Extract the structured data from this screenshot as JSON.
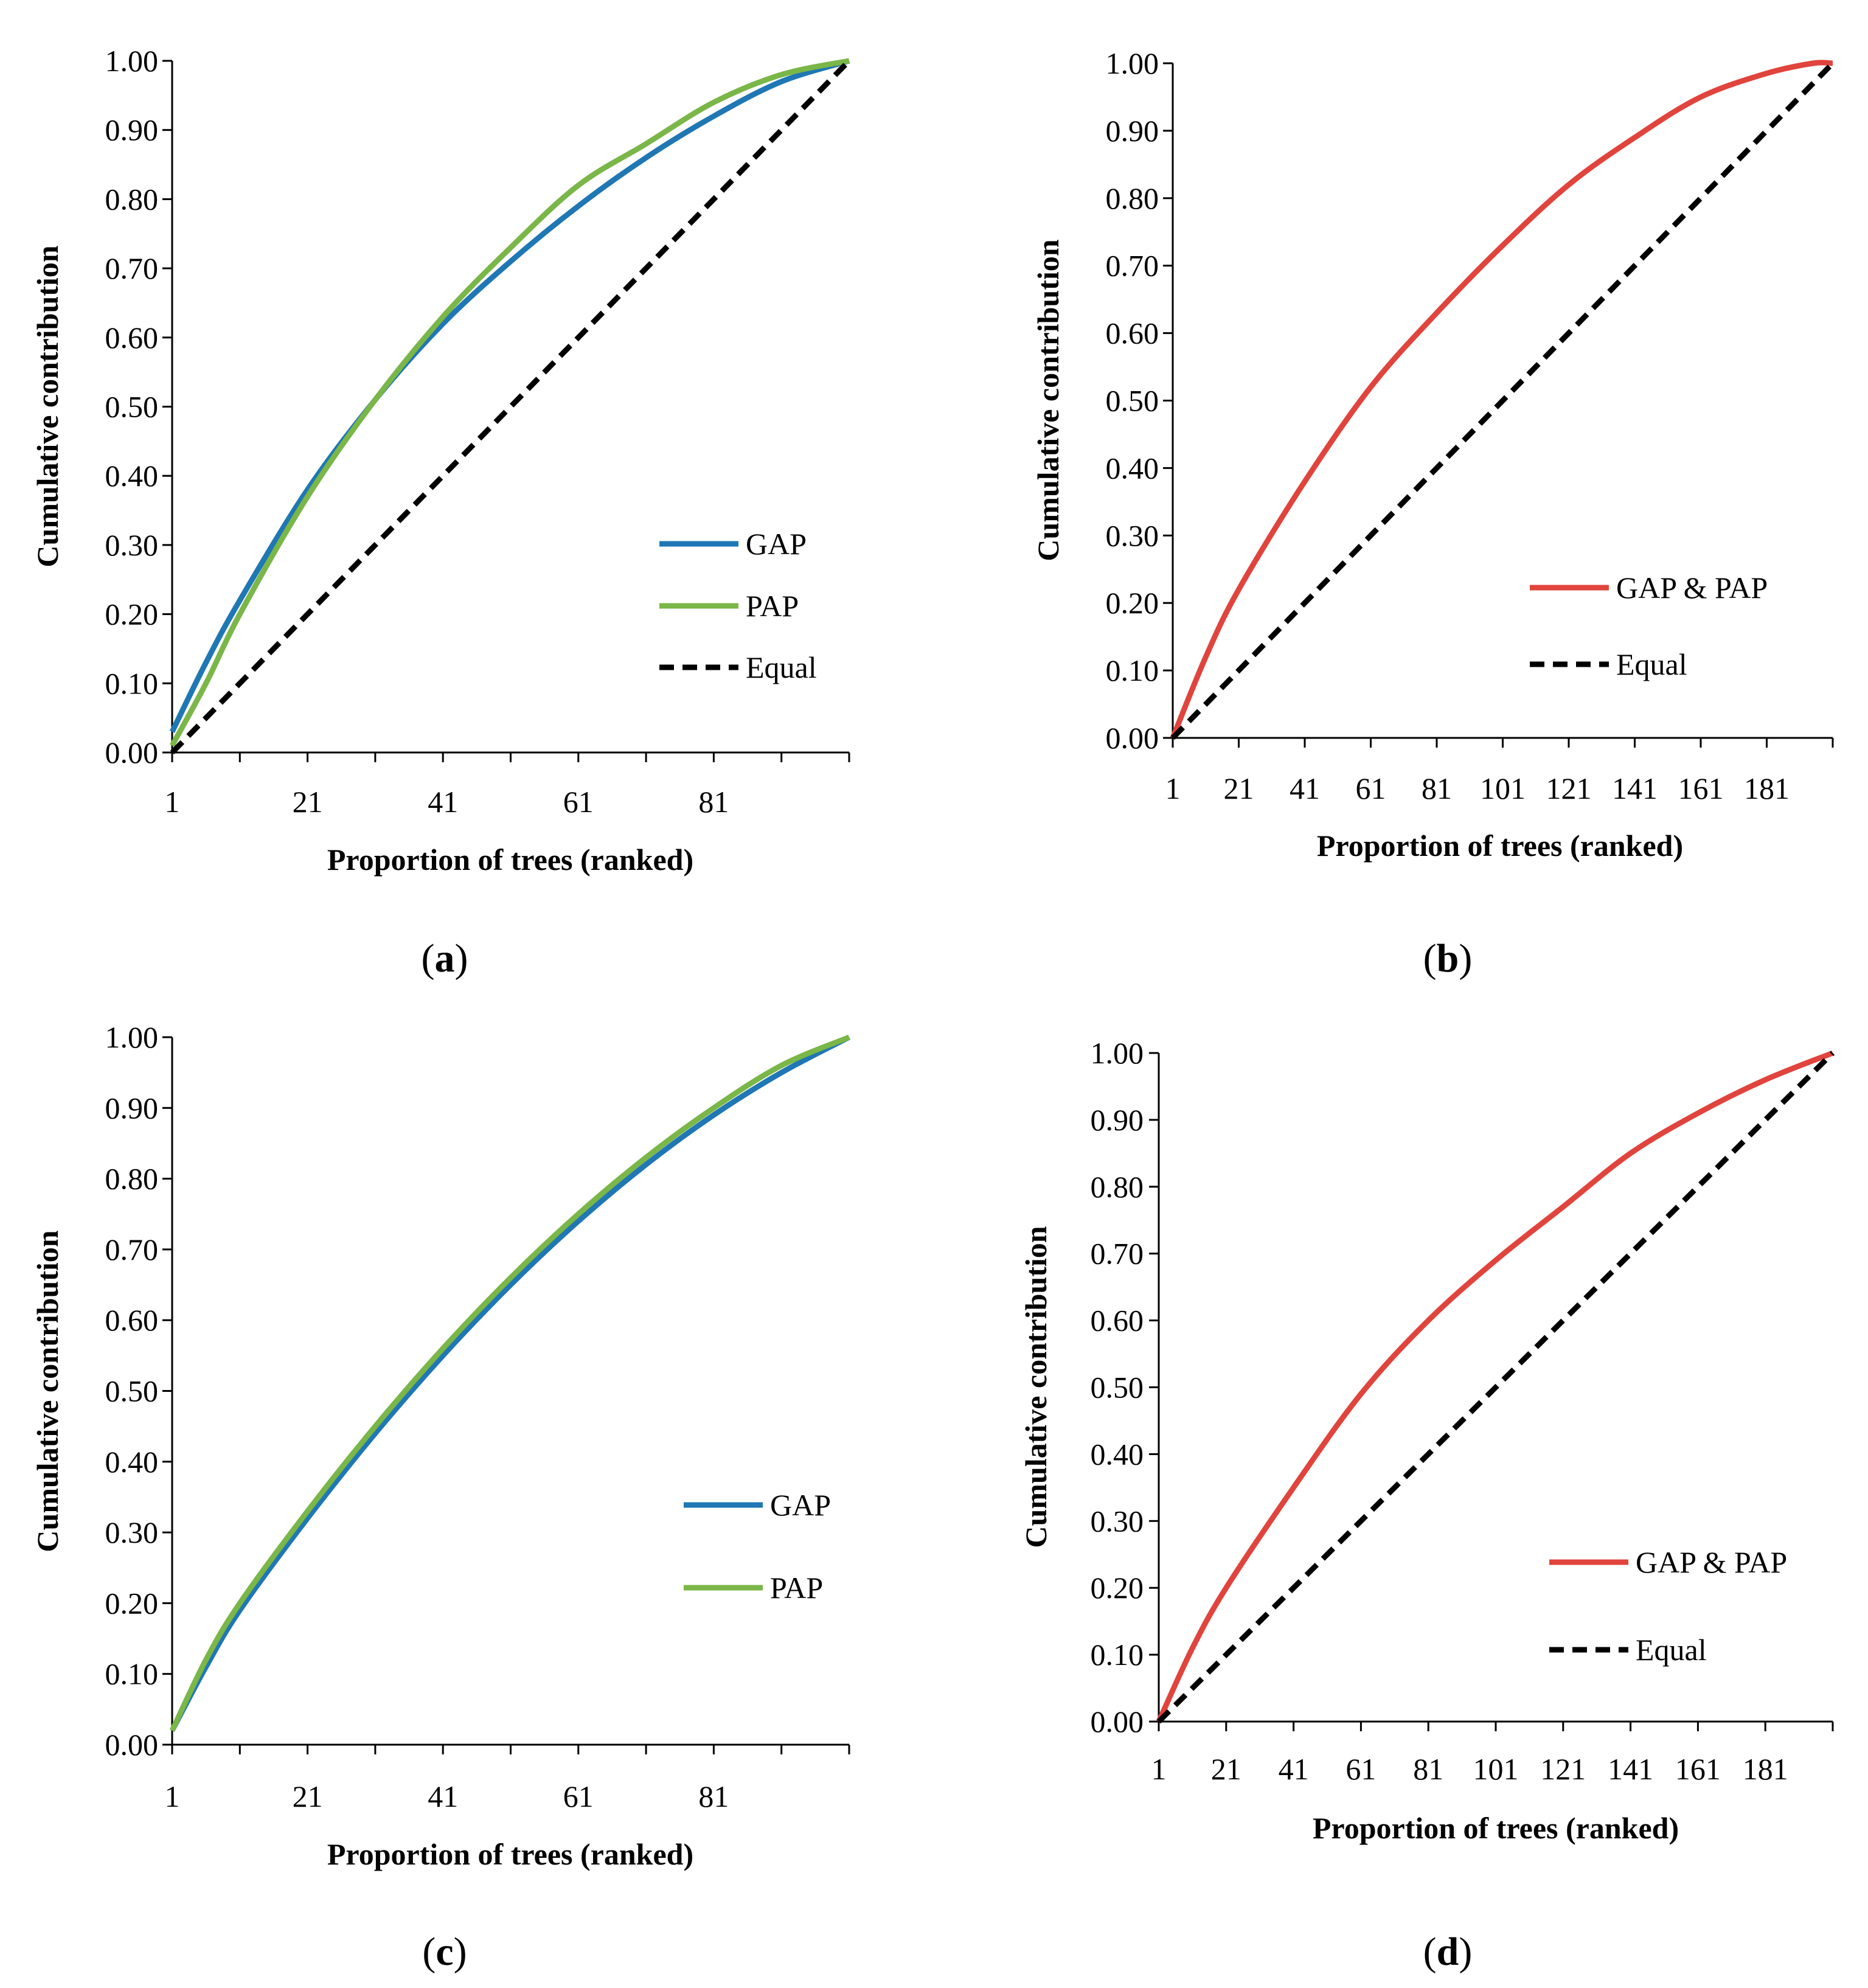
{
  "figure": {
    "captions": [
      {
        "open": "(",
        "letter": "a",
        "close": ")"
      },
      {
        "open": "(",
        "letter": "b",
        "close": ")"
      },
      {
        "open": "(",
        "letter": "c",
        "close": ")"
      },
      {
        "open": "(",
        "letter": "d",
        "close": ")"
      }
    ]
  },
  "chart_data": [
    {
      "panel": "a",
      "type": "line",
      "title": "",
      "xlabel": "Proportion of trees (ranked)",
      "ylabel": "Cumulative contribution",
      "x_ticks": [
        "1",
        "21",
        "41",
        "61",
        "81"
      ],
      "y_ticks": [
        "0.00",
        "0.10",
        "0.20",
        "0.30",
        "0.40",
        "0.50",
        "0.60",
        "0.70",
        "0.80",
        "0.90",
        "1.00"
      ],
      "xlim": [
        1,
        101
      ],
      "ylim": [
        0,
        1
      ],
      "legend_position": "center-right",
      "series": [
        {
          "name": "GAP",
          "color": "#1f77b4",
          "style": "solid",
          "x": [
            1,
            6,
            11,
            21,
            31,
            41,
            51,
            61,
            71,
            81,
            91,
            101
          ],
          "values": [
            0.03,
            0.13,
            0.22,
            0.38,
            0.51,
            0.62,
            0.71,
            0.79,
            0.86,
            0.92,
            0.97,
            1.0
          ]
        },
        {
          "name": "PAP",
          "color": "#7ab648",
          "style": "solid",
          "x": [
            1,
            6,
            11,
            21,
            31,
            41,
            51,
            61,
            71,
            81,
            91,
            101
          ],
          "values": [
            0.01,
            0.1,
            0.2,
            0.37,
            0.51,
            0.63,
            0.73,
            0.82,
            0.88,
            0.94,
            0.98,
            1.0
          ]
        },
        {
          "name": "Equal",
          "color": "#000000",
          "style": "dashed",
          "x": [
            1,
            101
          ],
          "values": [
            0.0,
            1.0
          ]
        }
      ]
    },
    {
      "panel": "b",
      "type": "line",
      "title": "",
      "xlabel": "Proportion of trees (ranked)",
      "ylabel": "Cumulative contribution",
      "x_ticks": [
        "1",
        "21",
        "41",
        "61",
        "81",
        "101",
        "121",
        "141",
        "161",
        "181"
      ],
      "y_ticks": [
        "0.00",
        "0.10",
        "0.20",
        "0.30",
        "0.40",
        "0.50",
        "0.60",
        "0.70",
        "0.80",
        "0.90",
        "1.00"
      ],
      "xlim": [
        1,
        201
      ],
      "ylim": [
        0,
        1
      ],
      "legend_position": "lower-right",
      "series": [
        {
          "name": "GAP & PAP",
          "color": "#e0443c",
          "style": "solid",
          "x": [
            1,
            11,
            21,
            41,
            61,
            81,
            101,
            121,
            141,
            161,
            181,
            195,
            201
          ],
          "values": [
            0.0,
            0.12,
            0.22,
            0.38,
            0.52,
            0.63,
            0.73,
            0.82,
            0.89,
            0.95,
            0.985,
            1.0,
            1.0
          ]
        },
        {
          "name": "Equal",
          "color": "#000000",
          "style": "dashed",
          "x": [
            1,
            201
          ],
          "values": [
            0.0,
            1.0
          ]
        }
      ]
    },
    {
      "panel": "c",
      "type": "line",
      "title": "",
      "xlabel": "Proportion of trees (ranked)",
      "ylabel": "Cumulative contribution",
      "x_ticks": [
        "1",
        "21",
        "41",
        "61",
        "81"
      ],
      "y_ticks": [
        "0.00",
        "0.10",
        "0.20",
        "0.30",
        "0.40",
        "0.50",
        "0.60",
        "0.70",
        "0.80",
        "0.90",
        "1.00"
      ],
      "xlim": [
        1,
        101
      ],
      "ylim": [
        0,
        1
      ],
      "legend_position": "center-right",
      "series": [
        {
          "name": "GAP",
          "color": "#1f77b4",
          "style": "solid",
          "x": [
            1,
            6,
            11,
            21,
            31,
            41,
            51,
            61,
            71,
            81,
            91,
            101
          ],
          "values": [
            0.02,
            0.11,
            0.19,
            0.32,
            0.44,
            0.55,
            0.65,
            0.74,
            0.82,
            0.89,
            0.95,
            1.0
          ]
        },
        {
          "name": "PAP",
          "color": "#7ab648",
          "style": "solid",
          "x": [
            1,
            6,
            11,
            21,
            31,
            41,
            51,
            61,
            71,
            81,
            91,
            101
          ],
          "values": [
            0.02,
            0.12,
            0.2,
            0.33,
            0.45,
            0.56,
            0.66,
            0.75,
            0.83,
            0.9,
            0.96,
            1.0
          ]
        }
      ]
    },
    {
      "panel": "d",
      "type": "line",
      "title": "",
      "xlabel": "Proportion of trees (ranked)",
      "ylabel": "Cumulative contribution",
      "x_ticks": [
        "1",
        "21",
        "41",
        "61",
        "81",
        "101",
        "121",
        "141",
        "161",
        "181"
      ],
      "y_ticks": [
        "0.00",
        "0.10",
        "0.20",
        "0.30",
        "0.40",
        "0.50",
        "0.60",
        "0.70",
        "0.80",
        "0.90",
        "1.00"
      ],
      "xlim": [
        1,
        201
      ],
      "ylim": [
        0,
        1
      ],
      "legend_position": "lower-right",
      "series": [
        {
          "name": "GAP & PAP",
          "color": "#e0443c",
          "style": "solid",
          "x": [
            1,
            11,
            21,
            41,
            61,
            81,
            101,
            121,
            141,
            161,
            181,
            201
          ],
          "values": [
            0.0,
            0.11,
            0.2,
            0.35,
            0.49,
            0.6,
            0.69,
            0.77,
            0.85,
            0.91,
            0.96,
            1.0
          ]
        },
        {
          "name": "Equal",
          "color": "#000000",
          "style": "dashed",
          "x": [
            1,
            201
          ],
          "values": [
            0.0,
            1.0
          ]
        }
      ]
    }
  ]
}
